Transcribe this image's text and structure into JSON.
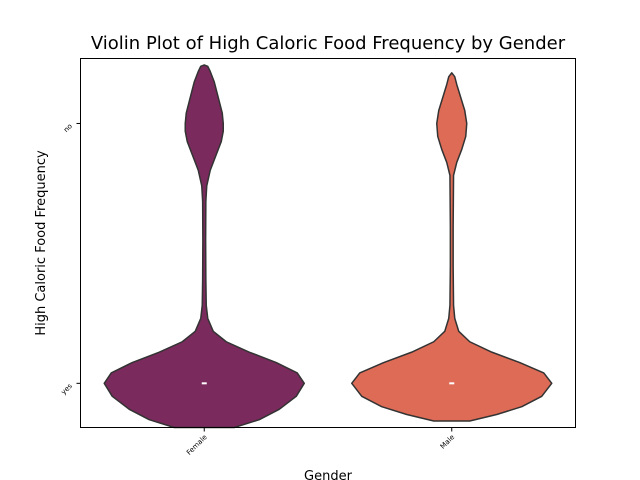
{
  "chart_data": {
    "type": "violin",
    "title": "Violin Plot of High Caloric Food Frequency by Gender",
    "xlabel": "Gender",
    "ylabel": "High Caloric Food Frequency",
    "categories": [
      "Female",
      "Male"
    ],
    "y_categories": [
      "no",
      "yes"
    ],
    "ylim": [
      -0.17,
      1.25
    ],
    "grid": false,
    "legend": "none",
    "colors": {
      "Female": "#7a2a5c",
      "Male": "#de6b55",
      "outline": "#333333",
      "median": "#ffffff"
    },
    "series": [
      {
        "category": "Female",
        "median": 0,
        "profile": [
          [
            -0.17,
            0.3
          ],
          [
            -0.14,
            0.55
          ],
          [
            -0.1,
            0.75
          ],
          [
            -0.05,
            0.92
          ],
          [
            0.0,
            1.0
          ],
          [
            0.04,
            0.93
          ],
          [
            0.08,
            0.72
          ],
          [
            0.12,
            0.45
          ],
          [
            0.16,
            0.22
          ],
          [
            0.2,
            0.09
          ],
          [
            0.25,
            0.035
          ],
          [
            0.3,
            0.02
          ],
          [
            0.4,
            0.016
          ],
          [
            0.55,
            0.014
          ],
          [
            0.7,
            0.016
          ],
          [
            0.76,
            0.025
          ],
          [
            0.82,
            0.06
          ],
          [
            0.88,
            0.12
          ],
          [
            0.93,
            0.17
          ],
          [
            0.97,
            0.19
          ],
          [
            1.0,
            0.19
          ],
          [
            1.04,
            0.18
          ],
          [
            1.1,
            0.14
          ],
          [
            1.16,
            0.1
          ],
          [
            1.2,
            0.06
          ],
          [
            1.22,
            0.035
          ],
          [
            1.225,
            0.0
          ]
        ]
      },
      {
        "category": "Male",
        "median": 0,
        "profile": [
          [
            -0.145,
            0.18
          ],
          [
            -0.12,
            0.45
          ],
          [
            -0.09,
            0.7
          ],
          [
            -0.05,
            0.9
          ],
          [
            0.0,
            1.0
          ],
          [
            0.04,
            0.92
          ],
          [
            0.08,
            0.68
          ],
          [
            0.12,
            0.4
          ],
          [
            0.16,
            0.18
          ],
          [
            0.2,
            0.07
          ],
          [
            0.25,
            0.03
          ],
          [
            0.3,
            0.018
          ],
          [
            0.45,
            0.014
          ],
          [
            0.6,
            0.014
          ],
          [
            0.8,
            0.018
          ],
          [
            0.85,
            0.05
          ],
          [
            0.9,
            0.1
          ],
          [
            0.95,
            0.14
          ],
          [
            1.0,
            0.15
          ],
          [
            1.05,
            0.13
          ],
          [
            1.1,
            0.09
          ],
          [
            1.15,
            0.05
          ],
          [
            1.18,
            0.03
          ],
          [
            1.195,
            0.0
          ]
        ]
      }
    ]
  }
}
